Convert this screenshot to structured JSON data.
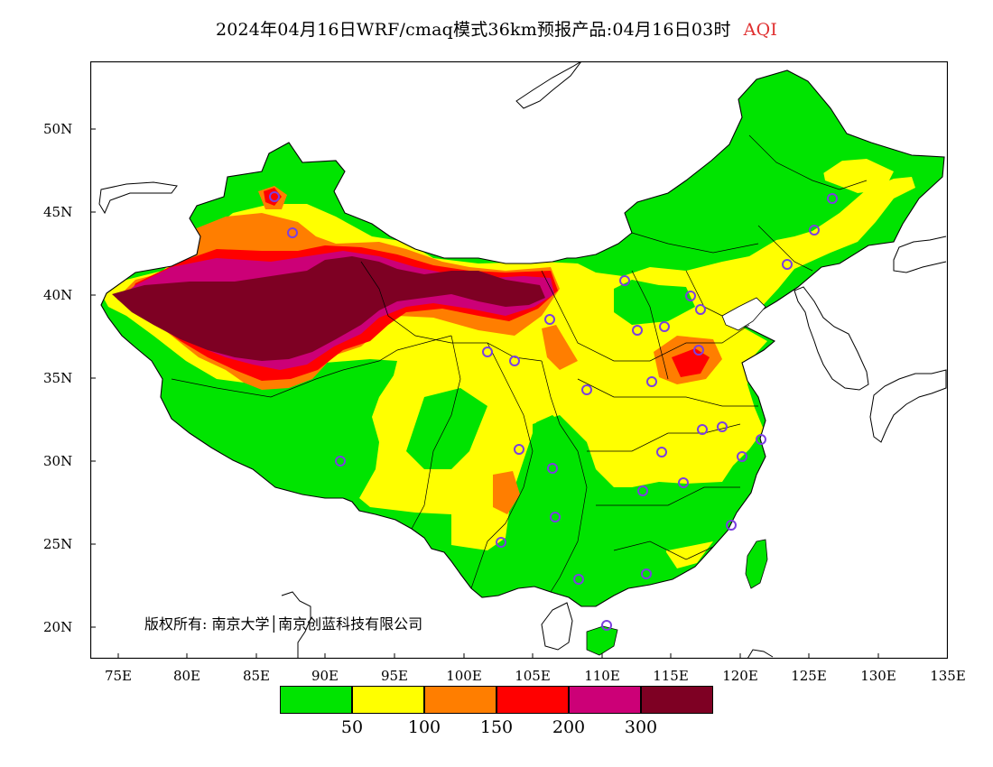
{
  "title": {
    "main": "2024年04月16日WRF/cmaq模式36km预报产品:04月16日03时",
    "variable": "AQI"
  },
  "colors": {
    "title_variable": "#e03030",
    "station_marker": "#7b3fe0",
    "boundary": "#000000"
  },
  "map": {
    "lat_labels": [
      "50N",
      "45N",
      "40N",
      "35N",
      "30N",
      "25N",
      "20N"
    ],
    "lon_labels": [
      "75E",
      "80E",
      "85E",
      "90E",
      "95E",
      "100E",
      "105E",
      "110E",
      "115E",
      "120E",
      "125E",
      "130E",
      "135E"
    ],
    "copyright": "版权所有: 南京大学│南京创蓝科技有限公司"
  },
  "legend": {
    "bins": [
      {
        "color": "#00e400",
        "range": "0-50"
      },
      {
        "color": "#ffff00",
        "range": "50-100"
      },
      {
        "color": "#ff7e00",
        "range": "100-150"
      },
      {
        "color": "#ff0000",
        "range": "150-200"
      },
      {
        "color": "#cc0077",
        "range": "200-300"
      },
      {
        "color": "#7e0023",
        "range": ">300"
      }
    ],
    "tick_labels": [
      "50",
      "100",
      "150",
      "200",
      "300"
    ]
  }
}
